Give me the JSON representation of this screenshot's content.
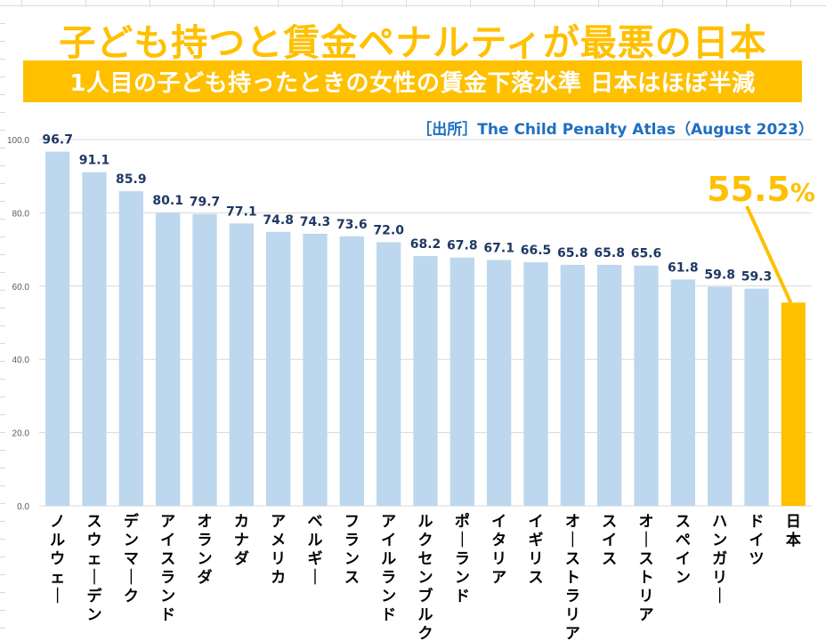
{
  "title": "子ども持つと賃金ペナルティが最悪の日本",
  "subtitle": "1人目の子ども持ったときの女性の賃金下落水準 日本はほぼ半減",
  "source": "［出所］The Child Penalty Atlas（August 2023）",
  "colors": {
    "accent": "#ffc000",
    "bar": "#bdd7ee",
    "highlight_bar": "#ffc000",
    "value_label": "#1f3864",
    "source_text": "#1f6fc0",
    "gridline": "#d9d9d9"
  },
  "chart_data": {
    "type": "bar",
    "title": "子ども持つと賃金ペナルティが最悪の日本",
    "subtitle": "1人目の子ども持ったときの女性の賃金下落水準 日本はほぼ半減",
    "xlabel": "",
    "ylabel": "",
    "ylim": [
      0,
      100
    ],
    "yticks": [
      0,
      20,
      40,
      60,
      80,
      100
    ],
    "ytick_labels": [
      "0.0",
      "20.0",
      "40.0",
      "60.0",
      "80.0",
      "100.0"
    ],
    "grid": true,
    "legend": "none",
    "categories": [
      "ノルウェー",
      "スウェーデン",
      "デンマーク",
      "アイスランド",
      "オランダ",
      "カナダ",
      "アメリカ",
      "ベルギー",
      "フランス",
      "アイルランド",
      "ルクセンブルク",
      "ポーランド",
      "イタリア",
      "イギリス",
      "オーストラリア",
      "スイス",
      "オーストリア",
      "スペイン",
      "ハンガリー",
      "ドイツ",
      "日本"
    ],
    "values": [
      96.7,
      91.1,
      85.9,
      80.1,
      79.7,
      77.1,
      74.8,
      74.3,
      73.6,
      72.0,
      68.2,
      67.8,
      67.1,
      66.5,
      65.8,
      65.8,
      65.6,
      61.8,
      59.8,
      59.3,
      55.5
    ],
    "value_labels": [
      "96.7",
      "91.1",
      "85.9",
      "80.1",
      "79.7",
      "77.1",
      "74.8",
      "74.3",
      "73.6",
      "72.0",
      "68.2",
      "67.8",
      "67.1",
      "66.5",
      "65.8",
      "65.8",
      "65.6",
      "61.8",
      "59.8",
      "59.3",
      ""
    ],
    "highlight_index": 20,
    "annotation": {
      "text": "55.5",
      "unit": "%",
      "target": "日本"
    }
  }
}
